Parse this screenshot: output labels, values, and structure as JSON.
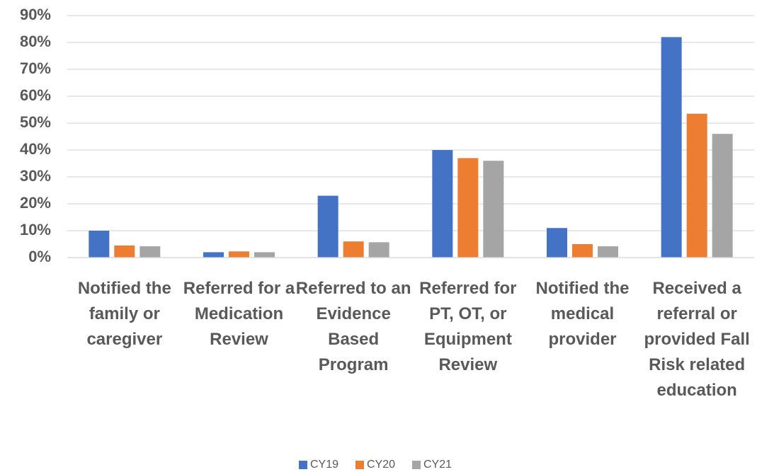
{
  "chart_data": {
    "type": "bar",
    "categories": [
      "Notified the family or caregiver",
      "Referred for a Medication Review",
      "Referred to an Evidence Based Program",
      "Referred for PT, OT, or Equipment Review",
      "Notified the medical provider",
      "Received a referral or provided Fall Risk related education"
    ],
    "series": [
      {
        "name": "CY19",
        "color": "#4472c4",
        "values": [
          10,
          2,
          23,
          40,
          11,
          82
        ]
      },
      {
        "name": "CY20",
        "color": "#ed7d31",
        "values": [
          4.5,
          2.3,
          6,
          37,
          5,
          53.5
        ]
      },
      {
        "name": "CY21",
        "color": "#a5a5a5",
        "values": [
          4.2,
          2,
          5.7,
          36,
          4.2,
          46
        ]
      }
    ],
    "ylim": [
      0,
      90
    ],
    "yticks": [
      {
        "value": 0,
        "label": "0%"
      },
      {
        "value": 10,
        "label": "10%"
      },
      {
        "value": 20,
        "label": "20%"
      },
      {
        "value": 30,
        "label": "30%"
      },
      {
        "value": 40,
        "label": "40%"
      },
      {
        "value": 50,
        "label": "50%"
      },
      {
        "value": 60,
        "label": "60%"
      },
      {
        "value": 70,
        "label": "70%"
      },
      {
        "value": 80,
        "label": "80%"
      },
      {
        "value": 90,
        "label": "90%"
      }
    ],
    "grid": true,
    "legend": "bottom"
  }
}
